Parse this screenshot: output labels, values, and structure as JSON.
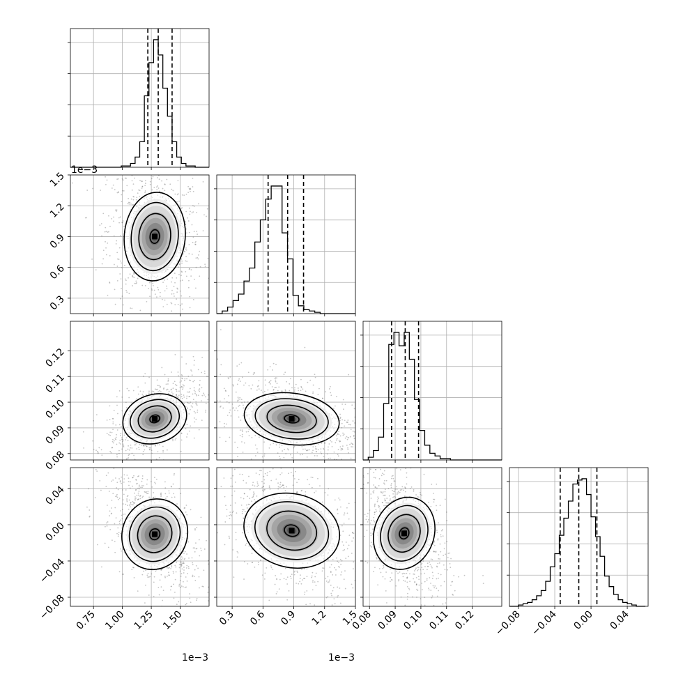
{
  "chart_data": {
    "type": "corner",
    "grid": true,
    "parameters": [
      {
        "range": [
          0.00055,
          0.00175
        ],
        "ticks": [
          0.00075,
          0.001,
          0.00125,
          0.0015
        ],
        "tick_labels": [
          "0.75",
          "1.00",
          "1.25",
          "1.50"
        ],
        "offset_label": "1e−3",
        "quantiles": [
          0.00122,
          0.00131,
          0.00143
        ],
        "histogram": {
          "bin_edges": [
            0.00055,
            0.00059,
            0.00063,
            0.00067,
            0.00071,
            0.00075,
            0.00079,
            0.00083,
            0.00087,
            0.00091,
            0.00095,
            0.00099,
            0.00103,
            0.00107,
            0.00111,
            0.00115,
            0.00119,
            0.00123,
            0.00127,
            0.00131,
            0.00135,
            0.00139,
            0.00143,
            0.00147,
            0.00151,
            0.00155,
            0.00159,
            0.00163,
            0.00167,
            0.00171,
            0.00175
          ],
          "counts": [
            0,
            0,
            0,
            0,
            0,
            0,
            0,
            0,
            0,
            0,
            0,
            0.01,
            0.01,
            0.03,
            0.08,
            0.2,
            0.56,
            0.82,
            1.0,
            0.88,
            0.62,
            0.4,
            0.2,
            0.08,
            0.03,
            0.01,
            0.01,
            0,
            0,
            0
          ]
        }
      },
      {
        "range": [
          0.00015,
          0.0015
        ],
        "ticks": [
          0.0003,
          0.0006,
          0.0009,
          0.0012,
          0.0015
        ],
        "tick_labels": [
          "0.3",
          "0.6",
          "0.9",
          "1.2",
          "1.5"
        ],
        "offset_label": "1e−3",
        "quantiles": [
          0.00065,
          0.00084,
          0.000995
        ],
        "histogram": {
          "bin_edges": [
            0.00015,
            0.000203,
            0.000256,
            0.000309,
            0.000362,
            0.000415,
            0.000468,
            0.000521,
            0.000574,
            0.000627,
            0.00068,
            0.000733,
            0.000786,
            0.000839,
            0.000892,
            0.000945,
            0.000998,
            0.001051,
            0.001104,
            0.001157,
            0.00121,
            0.001263,
            0.001316,
            0.001369,
            0.001422,
            0.0015
          ],
          "counts": [
            0,
            0.02,
            0.05,
            0.1,
            0.15,
            0.25,
            0.35,
            0.55,
            0.72,
            0.88,
            0.98,
            0.98,
            0.62,
            0.42,
            0.14,
            0.06,
            0.03,
            0.02,
            0.01,
            0,
            0,
            0,
            0,
            0,
            0
          ]
        }
      },
      {
        "range": [
          0.0775,
          0.1315
        ],
        "ticks": [
          0.08,
          0.09,
          0.1,
          0.11,
          0.12
        ],
        "tick_labels": [
          "0.08",
          "0.09",
          "0.10",
          "0.11",
          "0.12"
        ],
        "quantiles": [
          0.0886,
          0.0939,
          0.0991
        ],
        "histogram": {
          "bin_edges": [
            0.0775,
            0.0795,
            0.0815,
            0.0835,
            0.0855,
            0.0875,
            0.0895,
            0.0915,
            0.0935,
            0.0955,
            0.0975,
            0.0995,
            0.1015,
            0.1035,
            0.1055,
            0.1075,
            0.1095,
            0.1115,
            0.1135,
            0.1155,
            0.1175,
            0.1195,
            0.1215,
            0.1235,
            0.1255,
            0.1275,
            0.1295,
            0.1315
          ],
          "counts": [
            0,
            0.02,
            0.07,
            0.17,
            0.42,
            0.86,
            0.95,
            0.85,
            0.95,
            0.75,
            0.45,
            0.22,
            0.11,
            0.05,
            0.03,
            0.01,
            0.01,
            0,
            0,
            0,
            0,
            0,
            0,
            0,
            0,
            0,
            0
          ]
        }
      },
      {
        "range": [
          -0.09,
          0.063
        ],
        "ticks": [
          -0.08,
          -0.04,
          0.0,
          0.04
        ],
        "tick_labels": [
          "−0.08",
          "−0.04",
          "0.00",
          "0.04"
        ],
        "quantiles": [
          -0.034,
          -0.0135,
          0.0065
        ],
        "histogram": {
          "bin_edges": [
            -0.09,
            -0.085,
            -0.08,
            -0.075,
            -0.07,
            -0.065,
            -0.06,
            -0.055,
            -0.05,
            -0.045,
            -0.04,
            -0.035,
            -0.03,
            -0.025,
            -0.02,
            -0.015,
            -0.01,
            -0.005,
            0.0,
            0.005,
            0.01,
            0.015,
            0.02,
            0.025,
            0.03,
            0.035,
            0.04,
            0.045,
            0.05,
            0.055,
            0.06
          ],
          "counts": [
            0,
            0,
            0.01,
            0.02,
            0.03,
            0.05,
            0.08,
            0.12,
            0.19,
            0.3,
            0.4,
            0.54,
            0.67,
            0.8,
            0.93,
            0.96,
            0.97,
            0.85,
            0.68,
            0.53,
            0.38,
            0.23,
            0.15,
            0.09,
            0.05,
            0.03,
            0.02,
            0.01,
            0,
            0
          ]
        }
      }
    ],
    "pairs": [
      {
        "x": 0,
        "y": 1,
        "peak": [
          0.00128,
          0.0009
        ],
        "spread": [
          0.0001,
          0.00017
        ],
        "rho": -0.1
      },
      {
        "x": 0,
        "y": 2,
        "peak": [
          0.00128,
          0.0935
        ],
        "spread": [
          0.0001,
          0.0042
        ],
        "rho": 0.55
      },
      {
        "x": 1,
        "y": 2,
        "peak": [
          0.00088,
          0.0935
        ],
        "spread": [
          0.00017,
          0.0042
        ],
        "rho": -0.35
      },
      {
        "x": 0,
        "y": 3,
        "peak": [
          0.00128,
          -0.0105
        ],
        "spread": [
          0.0001,
          0.0175
        ],
        "rho": -0.55
      },
      {
        "x": 1,
        "y": 3,
        "peak": [
          0.00088,
          -0.0065
        ],
        "spread": [
          0.00017,
          0.0175
        ],
        "rho": -0.45
      },
      {
        "x": 2,
        "y": 3,
        "peak": [
          0.0935,
          -0.0095
        ],
        "spread": [
          0.0042,
          0.0175
        ],
        "rho": -0.45
      }
    ]
  }
}
